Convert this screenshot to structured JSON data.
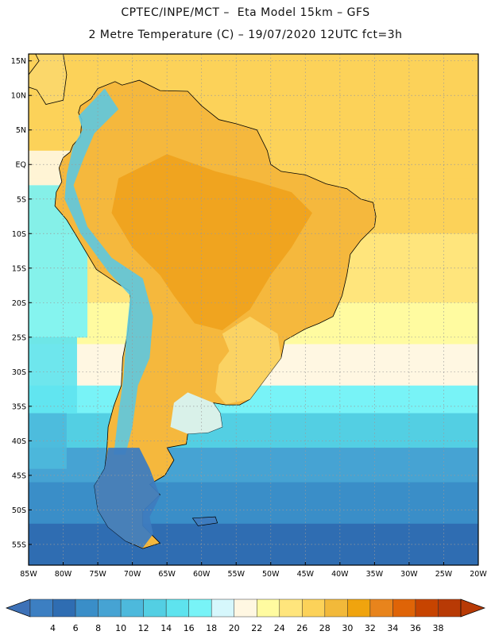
{
  "header": {
    "line1": "CPTEC/INPE/MCT –  Eta Model 15km – GFS",
    "line2": "2 Metre Temperature (C) – 19/07/2020 12UTC fct=3h"
  },
  "map": {
    "lat_ticks": [
      "15N",
      "10N",
      "5N",
      "EQ",
      "5S",
      "10S",
      "15S",
      "20S",
      "25S",
      "30S",
      "35S",
      "40S",
      "45S",
      "50S",
      "55S"
    ],
    "lon_ticks": [
      "85W",
      "80W",
      "75W",
      "70W",
      "65W",
      "60W",
      "55W",
      "50W",
      "45W",
      "40W",
      "35W",
      "30W",
      "25W",
      "20W"
    ],
    "lon_range": [
      -85,
      -20
    ],
    "lat_range": [
      -58,
      16
    ],
    "ocean_bands": [
      {
        "lat_top": 16,
        "lat_bottom": -2,
        "temp": 27
      },
      {
        "lat_top": -2,
        "lat_bottom": -10,
        "temp": 26
      },
      {
        "lat_top": -10,
        "lat_bottom": -20,
        "temp": 25
      },
      {
        "lat_top": -20,
        "lat_bottom": -26,
        "temp": 23
      },
      {
        "lat_top": -26,
        "lat_bottom": -32,
        "temp": 20
      },
      {
        "lat_top": -32,
        "lat_bottom": -36,
        "temp": 17
      },
      {
        "lat_top": -36,
        "lat_bottom": -41,
        "temp": 13
      },
      {
        "lat_top": -41,
        "lat_bottom": -46,
        "temp": 9
      },
      {
        "lat_top": -46,
        "lat_bottom": -52,
        "temp": 7
      },
      {
        "lat_top": -52,
        "lat_bottom": -58,
        "temp": 5
      }
    ],
    "pacific_bands": [
      {
        "lat_top": 2,
        "lat_bottom": -3,
        "temp": 21
      },
      {
        "lat_top": -3,
        "lat_bottom": -25,
        "temp": 16
      },
      {
        "lat_top": -25,
        "lat_bottom": -36,
        "temp": 14
      },
      {
        "lat_top": -36,
        "lat_bottom": -44,
        "temp": 11
      }
    ]
  },
  "colorbar": {
    "labels": [
      "4",
      "6",
      "8",
      "10",
      "12",
      "14",
      "16",
      "18",
      "20",
      "22",
      "24",
      "26",
      "28",
      "30",
      "32",
      "34",
      "36",
      "38"
    ],
    "colors": [
      "#3c7fc2",
      "#2f6db2",
      "#3a8ec8",
      "#46a3d3",
      "#4db9dc",
      "#53cfe3",
      "#5ee3ee",
      "#78f3f7",
      "#d6f7fc",
      "#fff7e2",
      "#fffba0",
      "#ffe57c",
      "#fcd259",
      "#f2b93a",
      "#f0a40e",
      "#e8841c",
      "#df6407",
      "#c74400",
      "#b83a05"
    ]
  },
  "color_scale": {
    "left_arrow": "#3d71b7",
    "right_arrow": "#b83a05",
    "land_base": "#f5b83d",
    "land_hot": "#eea01a",
    "land_cool": "#fbd76a",
    "andes": "#5dc8e0",
    "patagonia": "#3e7cbf",
    "pacific_edge": "#8fd9ea",
    "frame": "#000000",
    "grid": "#9a9a9a"
  }
}
